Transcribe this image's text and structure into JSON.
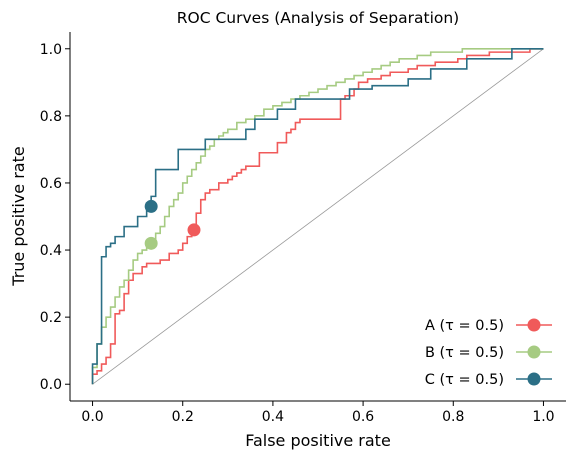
{
  "chart_data": {
    "type": "line",
    "title": "ROC Curves (Analysis of Separation)",
    "xlabel": "False positive rate",
    "ylabel": "True positive rate",
    "xlim": [
      -0.05,
      1.05
    ],
    "ylim": [
      -0.05,
      1.05
    ],
    "xticks": [
      "0.0",
      "0.2",
      "0.4",
      "0.6",
      "0.8",
      "1.0"
    ],
    "xtick_values": [
      0.0,
      0.2,
      0.4,
      0.6,
      0.8,
      1.0
    ],
    "yticks": [
      "0.0",
      "0.2",
      "0.4",
      "0.6",
      "0.8",
      "1.0"
    ],
    "ytick_values": [
      0.0,
      0.2,
      0.4,
      0.6,
      0.8,
      1.0
    ],
    "grid": false,
    "legend_position": "lower-right",
    "diagonal": {
      "x": [
        0,
        1
      ],
      "y": [
        0,
        1
      ],
      "color": "#999999"
    },
    "series": [
      {
        "name": "A (τ = 0.5)",
        "color": "#f05a5a",
        "x": [
          0.0,
          0.0,
          0.01,
          0.01,
          0.02,
          0.02,
          0.03,
          0.03,
          0.04,
          0.04,
          0.05,
          0.05,
          0.06,
          0.06,
          0.07,
          0.07,
          0.08,
          0.08,
          0.09,
          0.09,
          0.11,
          0.11,
          0.12,
          0.12,
          0.15,
          0.15,
          0.17,
          0.17,
          0.19,
          0.19,
          0.2,
          0.2,
          0.21,
          0.21,
          0.22,
          0.22,
          0.23,
          0.23,
          0.24,
          0.24,
          0.25,
          0.25,
          0.26,
          0.26,
          0.28,
          0.28,
          0.3,
          0.3,
          0.31,
          0.31,
          0.32,
          0.32,
          0.33,
          0.33,
          0.34,
          0.34,
          0.35,
          0.35,
          0.37,
          0.37,
          0.41,
          0.41,
          0.43,
          0.43,
          0.44,
          0.44,
          0.45,
          0.45,
          0.46,
          0.46,
          0.55,
          0.55,
          0.56,
          0.56,
          0.58,
          0.58,
          0.59,
          0.59,
          0.61,
          0.61,
          0.64,
          0.64,
          0.66,
          0.66,
          0.7,
          0.7,
          0.72,
          0.72,
          0.76,
          0.76,
          0.8,
          0.8,
          0.81,
          0.81,
          0.83,
          0.83,
          0.86,
          0.86,
          0.88,
          0.88,
          0.92,
          0.92,
          0.97,
          0.97,
          1.0
        ],
        "y": [
          0.0,
          0.03,
          0.03,
          0.04,
          0.04,
          0.06,
          0.06,
          0.08,
          0.08,
          0.12,
          0.12,
          0.21,
          0.21,
          0.22,
          0.22,
          0.27,
          0.27,
          0.31,
          0.31,
          0.33,
          0.33,
          0.35,
          0.35,
          0.36,
          0.36,
          0.37,
          0.37,
          0.39,
          0.39,
          0.4,
          0.4,
          0.42,
          0.42,
          0.44,
          0.44,
          0.46,
          0.46,
          0.51,
          0.51,
          0.55,
          0.55,
          0.57,
          0.57,
          0.58,
          0.58,
          0.6,
          0.6,
          0.61,
          0.61,
          0.62,
          0.62,
          0.63,
          0.63,
          0.64,
          0.64,
          0.65,
          0.65,
          0.65,
          0.65,
          0.69,
          0.69,
          0.72,
          0.72,
          0.75,
          0.75,
          0.76,
          0.76,
          0.78,
          0.78,
          0.79,
          0.79,
          0.85,
          0.85,
          0.86,
          0.86,
          0.88,
          0.88,
          0.9,
          0.9,
          0.91,
          0.91,
          0.92,
          0.92,
          0.93,
          0.93,
          0.94,
          0.94,
          0.95,
          0.95,
          0.96,
          0.96,
          0.96,
          0.96,
          0.97,
          0.97,
          0.98,
          0.98,
          0.98,
          0.98,
          0.99,
          0.99,
          0.99,
          0.99,
          1.0,
          1.0
        ],
        "threshold_point": {
          "x": 0.225,
          "y": 0.46
        }
      },
      {
        "name": "B (τ = 0.5)",
        "color": "#a6cb82",
        "x": [
          0.0,
          0.0,
          0.01,
          0.01,
          0.02,
          0.02,
          0.03,
          0.03,
          0.04,
          0.04,
          0.05,
          0.05,
          0.06,
          0.06,
          0.07,
          0.07,
          0.08,
          0.08,
          0.09,
          0.09,
          0.1,
          0.1,
          0.11,
          0.11,
          0.12,
          0.12,
          0.13,
          0.13,
          0.14,
          0.14,
          0.15,
          0.15,
          0.16,
          0.16,
          0.17,
          0.17,
          0.18,
          0.18,
          0.19,
          0.19,
          0.2,
          0.2,
          0.21,
          0.21,
          0.22,
          0.22,
          0.23,
          0.23,
          0.24,
          0.24,
          0.25,
          0.25,
          0.26,
          0.26,
          0.27,
          0.27,
          0.28,
          0.28,
          0.29,
          0.29,
          0.3,
          0.3,
          0.32,
          0.32,
          0.34,
          0.34,
          0.36,
          0.36,
          0.38,
          0.38,
          0.4,
          0.4,
          0.42,
          0.42,
          0.44,
          0.44,
          0.46,
          0.46,
          0.48,
          0.48,
          0.5,
          0.5,
          0.52,
          0.52,
          0.54,
          0.54,
          0.56,
          0.56,
          0.58,
          0.58,
          0.6,
          0.6,
          0.62,
          0.62,
          0.64,
          0.64,
          0.66,
          0.66,
          0.68,
          0.68,
          0.7,
          0.7,
          0.72,
          0.72,
          0.75,
          0.75,
          0.78,
          0.78,
          0.82,
          0.82,
          0.86,
          0.86,
          0.9,
          0.9,
          0.95,
          0.95,
          1.0
        ],
        "y": [
          0.0,
          0.05,
          0.05,
          0.12,
          0.12,
          0.17,
          0.17,
          0.2,
          0.2,
          0.23,
          0.23,
          0.26,
          0.26,
          0.29,
          0.29,
          0.31,
          0.31,
          0.34,
          0.34,
          0.37,
          0.37,
          0.39,
          0.39,
          0.4,
          0.4,
          0.42,
          0.42,
          0.43,
          0.43,
          0.45,
          0.45,
          0.47,
          0.47,
          0.5,
          0.5,
          0.53,
          0.53,
          0.55,
          0.55,
          0.57,
          0.57,
          0.6,
          0.6,
          0.62,
          0.62,
          0.64,
          0.64,
          0.66,
          0.66,
          0.68,
          0.68,
          0.7,
          0.7,
          0.71,
          0.71,
          0.73,
          0.73,
          0.74,
          0.74,
          0.75,
          0.75,
          0.76,
          0.76,
          0.78,
          0.78,
          0.79,
          0.79,
          0.8,
          0.8,
          0.82,
          0.82,
          0.83,
          0.83,
          0.84,
          0.84,
          0.85,
          0.85,
          0.86,
          0.86,
          0.87,
          0.87,
          0.88,
          0.88,
          0.89,
          0.89,
          0.9,
          0.9,
          0.91,
          0.91,
          0.92,
          0.92,
          0.93,
          0.93,
          0.94,
          0.94,
          0.95,
          0.95,
          0.96,
          0.96,
          0.97,
          0.97,
          0.97,
          0.97,
          0.98,
          0.98,
          0.99,
          0.99,
          0.99,
          0.99,
          1.0,
          1.0,
          1.0,
          1.0,
          1.0,
          1.0,
          1.0,
          1.0
        ],
        "threshold_point": {
          "x": 0.13,
          "y": 0.42
        }
      },
      {
        "name": "C (τ = 0.5)",
        "color": "#2b6f86",
        "x": [
          0.0,
          0.0,
          0.01,
          0.01,
          0.02,
          0.02,
          0.03,
          0.03,
          0.04,
          0.04,
          0.05,
          0.05,
          0.07,
          0.07,
          0.1,
          0.1,
          0.12,
          0.12,
          0.13,
          0.13,
          0.14,
          0.14,
          0.19,
          0.19,
          0.25,
          0.25,
          0.34,
          0.34,
          0.36,
          0.36,
          0.41,
          0.41,
          0.45,
          0.45,
          0.52,
          0.52,
          0.57,
          0.57,
          0.62,
          0.62,
          0.7,
          0.7,
          0.75,
          0.75,
          0.83,
          0.83,
          0.93,
          0.93,
          1.0
        ],
        "y": [
          0.0,
          0.06,
          0.06,
          0.12,
          0.12,
          0.38,
          0.38,
          0.41,
          0.41,
          0.42,
          0.42,
          0.44,
          0.44,
          0.47,
          0.47,
          0.5,
          0.5,
          0.54,
          0.54,
          0.56,
          0.56,
          0.64,
          0.64,
          0.7,
          0.7,
          0.73,
          0.73,
          0.76,
          0.76,
          0.79,
          0.79,
          0.82,
          0.82,
          0.85,
          0.85,
          0.85,
          0.85,
          0.88,
          0.88,
          0.89,
          0.89,
          0.91,
          0.91,
          0.94,
          0.94,
          0.97,
          0.97,
          1.0,
          1.0
        ],
        "threshold_point": {
          "x": 0.13,
          "y": 0.53
        }
      }
    ]
  }
}
